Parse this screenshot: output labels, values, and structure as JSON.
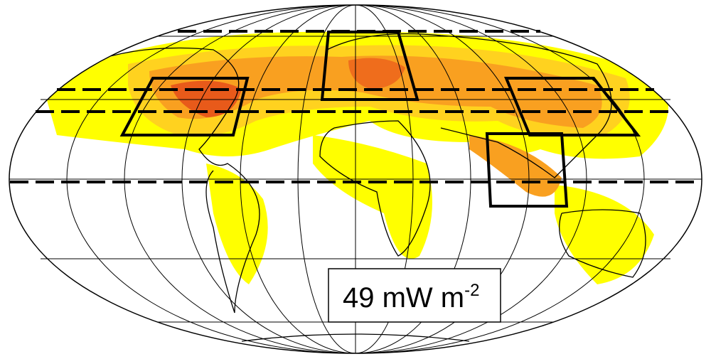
{
  "label": {
    "text": "49 mW m",
    "exponent": "-2"
  }
}
